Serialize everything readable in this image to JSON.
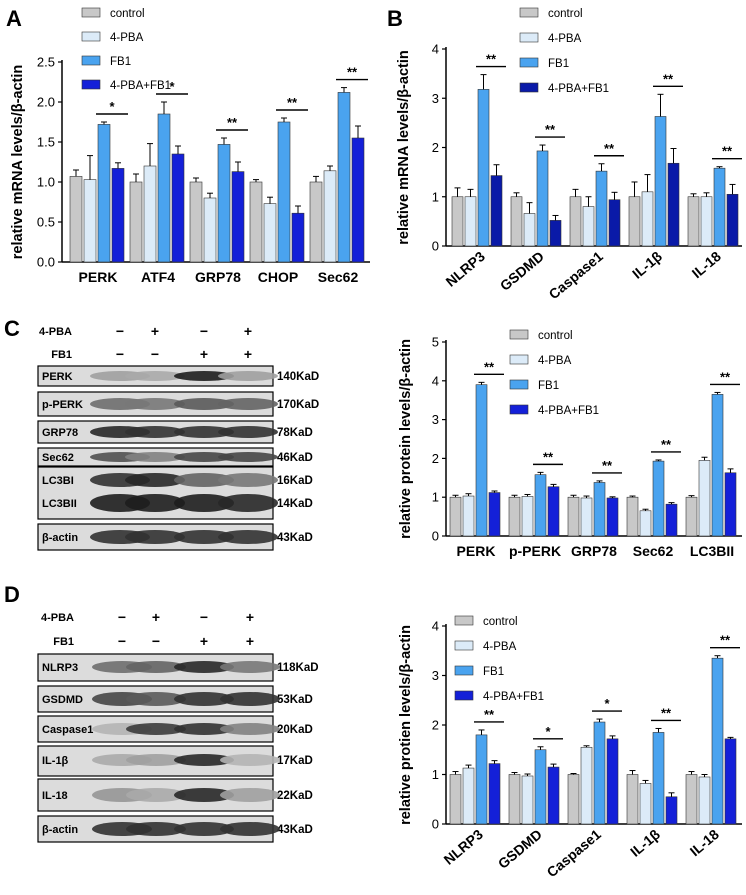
{
  "panels": {
    "a": {
      "letter": "A"
    },
    "b": {
      "letter": "B"
    },
    "c": {
      "letter": "C"
    },
    "d": {
      "letter": "D"
    }
  },
  "colors": {
    "control": "#c8c8c8",
    "pba": "#dcebf8",
    "fb1": "#4aa3ef",
    "combo": "#1420d8",
    "combo_dark": "#0a1aa8",
    "errorbar": "#000000"
  },
  "legend": [
    "control",
    "4-PBA",
    "FB1",
    "4-PBA+FB1"
  ],
  "blot_c": {
    "row_labels": [
      "4-PBA",
      "FB1"
    ],
    "signs_pba": [
      "−",
      "+",
      "−",
      "+"
    ],
    "signs_fb1": [
      "−",
      "−",
      "+",
      "+"
    ],
    "bands": [
      {
        "label": "PERK",
        "kd": "140KaD"
      },
      {
        "label": "p-PERK",
        "kd": "170KaD"
      },
      {
        "label": "GRP78",
        "kd": "78KaD"
      },
      {
        "label": "Sec62",
        "kd": "46KaD"
      },
      {
        "label": "LC3BI",
        "kd": "16KaD"
      },
      {
        "label": "LC3BII",
        "kd": "14KaD"
      },
      {
        "label": "β-actin",
        "kd": "43KaD"
      }
    ]
  },
  "blot_d": {
    "row_labels": [
      "4-PBA",
      "FB1"
    ],
    "signs_pba": [
      "−",
      "+",
      "−",
      "+"
    ],
    "signs_fb1": [
      "−",
      "−",
      "+",
      "+"
    ],
    "bands": [
      {
        "label": "NLRP3",
        "kd": "118KaD"
      },
      {
        "label": "GSDMD",
        "kd": "53KaD"
      },
      {
        "label": "Caspase1",
        "kd": "20KaD"
      },
      {
        "label": "IL-1β",
        "kd": "17KaD"
      },
      {
        "label": "IL-18",
        "kd": "22KaD"
      },
      {
        "label": "β-actin",
        "kd": "43KaD"
      }
    ]
  },
  "chart_data": [
    {
      "id": "A",
      "type": "bar",
      "ylabel": "relative mRNA levels/β-actin",
      "ylim": [
        0,
        2.5
      ],
      "yticks": [
        "0.0",
        "0.5",
        "1.0",
        "1.5",
        "2.0",
        "2.5"
      ],
      "categories": [
        "PERK",
        "ATF4",
        "GRP78",
        "CHOP",
        "Sec62"
      ],
      "series": [
        {
          "name": "control",
          "values": [
            1.07,
            1.0,
            1.0,
            1.0,
            1.0
          ],
          "errors": [
            0.08,
            0.1,
            0.05,
            0.03,
            0.07
          ]
        },
        {
          "name": "4-PBA",
          "values": [
            1.03,
            1.2,
            0.8,
            0.73,
            1.14
          ],
          "errors": [
            0.3,
            0.28,
            0.06,
            0.08,
            0.06
          ]
        },
        {
          "name": "FB1",
          "values": [
            1.72,
            1.85,
            1.47,
            1.75,
            2.12
          ],
          "errors": [
            0.03,
            0.15,
            0.08,
            0.05,
            0.06
          ]
        },
        {
          "name": "4-PBA+FB1",
          "values": [
            1.17,
            1.35,
            1.13,
            0.61,
            1.55
          ],
          "errors": [
            0.07,
            0.1,
            0.12,
            0.09,
            0.15
          ]
        }
      ],
      "significance": [
        "*",
        "*",
        "**",
        "**",
        "**"
      ]
    },
    {
      "id": "B",
      "type": "bar",
      "ylabel": "relative mRNA levels/β-actin",
      "ylim": [
        0,
        4
      ],
      "yticks": [
        "0",
        "1",
        "2",
        "3",
        "4"
      ],
      "categories": [
        "NLRP3",
        "GSDMD",
        "Caspase1",
        "IL-1β",
        "IL-18"
      ],
      "series": [
        {
          "name": "control",
          "values": [
            1.0,
            1.0,
            1.0,
            1.0,
            1.0
          ],
          "errors": [
            0.18,
            0.08,
            0.15,
            0.3,
            0.06
          ]
        },
        {
          "name": "4-PBA",
          "values": [
            1.0,
            0.66,
            0.8,
            1.1,
            1.0
          ],
          "errors": [
            0.15,
            0.22,
            0.2,
            0.35,
            0.08
          ]
        },
        {
          "name": "FB1",
          "values": [
            3.18,
            1.93,
            1.52,
            2.63,
            1.58
          ],
          "errors": [
            0.3,
            0.12,
            0.15,
            0.45,
            0.03
          ]
        },
        {
          "name": "4-PBA+FB1",
          "values": [
            1.43,
            0.52,
            0.94,
            1.68,
            1.05
          ],
          "errors": [
            0.22,
            0.1,
            0.15,
            0.3,
            0.2
          ]
        }
      ],
      "significance": [
        "**",
        "**",
        "**",
        "**",
        "**"
      ]
    },
    {
      "id": "C",
      "type": "bar",
      "ylabel": "relative protein levels/β-actin",
      "ylim": [
        0,
        5
      ],
      "yticks": [
        "0",
        "1",
        "2",
        "3",
        "4",
        "5"
      ],
      "categories": [
        "PERK",
        "p-PERK",
        "GRP78",
        "Sec62",
        "LC3BII"
      ],
      "series": [
        {
          "name": "control",
          "values": [
            1.0,
            1.0,
            1.0,
            1.0,
            1.0
          ],
          "errors": [
            0.05,
            0.05,
            0.05,
            0.03,
            0.04
          ]
        },
        {
          "name": "4-PBA",
          "values": [
            1.03,
            1.02,
            0.98,
            0.65,
            1.95
          ],
          "errors": [
            0.06,
            0.05,
            0.05,
            0.04,
            0.08
          ]
        },
        {
          "name": "FB1",
          "values": [
            3.9,
            1.58,
            1.38,
            1.93,
            3.65
          ],
          "errors": [
            0.06,
            0.06,
            0.04,
            0.03,
            0.05
          ]
        },
        {
          "name": "4-PBA+FB1",
          "values": [
            1.12,
            1.27,
            0.98,
            0.82,
            1.63
          ],
          "errors": [
            0.04,
            0.06,
            0.03,
            0.04,
            0.1
          ]
        }
      ],
      "significance": [
        "**",
        "**",
        "**",
        "**",
        "**"
      ]
    },
    {
      "id": "D",
      "type": "bar",
      "ylabel": "relative protien levels/β-actin",
      "ylim": [
        0,
        4
      ],
      "yticks": [
        "0",
        "1",
        "2",
        "3",
        "4"
      ],
      "categories": [
        "NLRP3",
        "GSDMD",
        "Caspase1",
        "IL-1β",
        "IL-18"
      ],
      "series": [
        {
          "name": "control",
          "values": [
            1.0,
            1.0,
            1.0,
            1.0,
            1.0
          ],
          "errors": [
            0.06,
            0.04,
            0.02,
            0.08,
            0.06
          ]
        },
        {
          "name": "4-PBA",
          "values": [
            1.13,
            0.97,
            1.55,
            0.82,
            0.95
          ],
          "errors": [
            0.06,
            0.04,
            0.03,
            0.06,
            0.05
          ]
        },
        {
          "name": "FB1",
          "values": [
            1.8,
            1.5,
            2.06,
            1.85,
            3.35
          ],
          "errors": [
            0.1,
            0.06,
            0.06,
            0.08,
            0.05
          ]
        },
        {
          "name": "4-PBA+FB1",
          "values": [
            1.22,
            1.15,
            1.72,
            0.55,
            1.72
          ],
          "errors": [
            0.06,
            0.06,
            0.06,
            0.08,
            0.03
          ]
        }
      ],
      "significance": [
        "**",
        "*",
        "*",
        "**",
        "**"
      ]
    }
  ]
}
